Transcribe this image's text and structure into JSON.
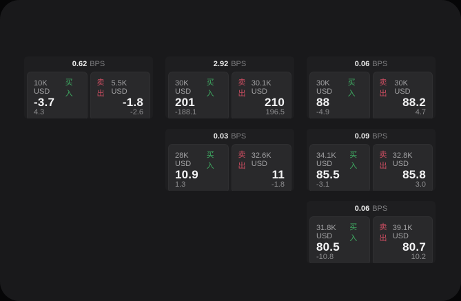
{
  "labels": {
    "bps_unit": "BPS",
    "buy": "买入",
    "sell": "卖出"
  },
  "colors": {
    "buy_green": "#3fae63",
    "sell_red": "#cc4d61",
    "panel_bg": "#19191b",
    "card_bg": "#1e1e20",
    "pane_bg": "#29292b"
  },
  "cards": [
    {
      "bps": "0.62",
      "buy": {
        "size": "10K USD",
        "value": "-3.7",
        "delta": "4.3"
      },
      "sell": {
        "size": "5.5K USD",
        "value": "-1.8",
        "delta": "-2.6"
      }
    },
    {
      "bps": "2.92",
      "buy": {
        "size": "30K USD",
        "value": "201",
        "delta": "-188.1"
      },
      "sell": {
        "size": "30.1K USD",
        "value": "210",
        "delta": "196.5"
      }
    },
    {
      "bps": "0.06",
      "buy": {
        "size": "30K USD",
        "value": "88",
        "delta": "-4.9"
      },
      "sell": {
        "size": "30K USD",
        "value": "88.2",
        "delta": "4.7"
      }
    },
    {
      "bps": "0.03",
      "buy": {
        "size": "28K USD",
        "value": "10.9",
        "delta": "1.3"
      },
      "sell": {
        "size": "32.6K USD",
        "value": "11",
        "delta": "-1.8"
      }
    },
    {
      "bps": "0.09",
      "buy": {
        "size": "34.1K USD",
        "value": "85.5",
        "delta": "-3.1"
      },
      "sell": {
        "size": "32.8K USD",
        "value": "85.8",
        "delta": "3.0"
      }
    },
    {
      "bps": "0.06",
      "buy": {
        "size": "31.8K USD",
        "value": "80.5",
        "delta": "-10.8"
      },
      "sell": {
        "size": "39.1K USD",
        "value": "80.7",
        "delta": "10.2"
      }
    }
  ]
}
